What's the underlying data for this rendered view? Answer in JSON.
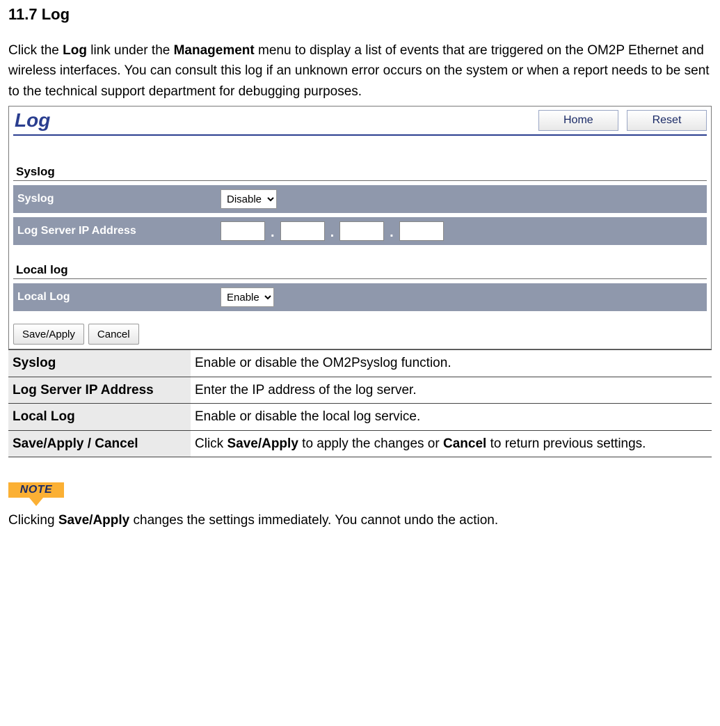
{
  "heading": "11.7 Log",
  "intro": {
    "pre1": "Click the ",
    "b1": "Log",
    "mid1": " link under the ",
    "b2": "Management",
    "post": " menu to display a list of events that are triggered on the OM2P Ethernet and wireless interfaces. You can consult this log if an unknown error occurs on the system or when a report needs to be sent to the technical support department for debugging purposes."
  },
  "shot": {
    "title": "Log",
    "home_btn": "Home",
    "reset_btn": "Reset",
    "syslog_group": "Syslog",
    "syslog_row_label": "Syslog",
    "syslog_value": "Disable",
    "logserver_label": "Log Server IP Address",
    "locallog_group": "Local log",
    "locallog_row_label": "Local Log",
    "locallog_value": "Enable",
    "save_apply_btn": "Save/Apply",
    "cancel_btn": "Cancel",
    "colors": {
      "title_blue": "#2a3e8f",
      "band_gray": "#8f98ac",
      "note_orange": "#fbb034"
    }
  },
  "defs": {
    "r1_term": "Syslog",
    "r1_desc": "Enable or disable the OM2Psyslog function.",
    "r2_term": "Log Server IP Address",
    "r2_desc": "Enter the IP address of the log server.",
    "r3_term": "Local Log",
    "r3_desc": "Enable or disable the local log service.",
    "r4_term": "Save/Apply / Cancel",
    "r4_pre": "Click ",
    "r4_b1": "Save/Apply",
    "r4_mid": " to apply the changes or ",
    "r4_b2": "Cancel",
    "r4_post": " to return previous settings."
  },
  "note_label": "NOTE",
  "note_text_pre": "Clicking ",
  "note_text_b": "Save/Apply",
  "note_text_post": " changes the settings immediately. You cannot undo the action."
}
